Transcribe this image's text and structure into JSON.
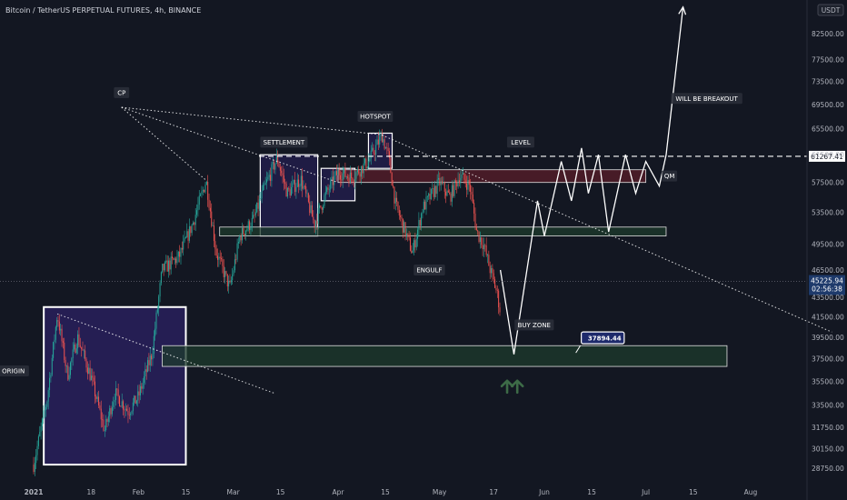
{
  "header": {
    "title": "Bitcoin / TetherUS PERPETUAL FUTURES, 4h, BINANCE",
    "currency": "USDT"
  },
  "colors": {
    "background": "#131722",
    "up": "#26a69a",
    "down": "#ef5350",
    "text": "#b2b5be",
    "box_purple": "#2a2060",
    "zone_green": "#1e3b2c",
    "zone_red": "#5a1e2a",
    "arrow_green": "#3d6b47"
  },
  "chart_data": {
    "type": "candlestick",
    "title": "Bitcoin / TetherUS PERPETUAL FUTURES, 4h, BINANCE",
    "y_axis": {
      "ticks": [
        28750,
        30150,
        31750,
        33500,
        35500,
        37500,
        39500,
        41500,
        43500,
        46500,
        49500,
        53500,
        57500,
        61500,
        65500,
        69500,
        73500,
        77500,
        82500,
        87500
      ],
      "tick_labels": [
        "28750.00",
        "30150.00",
        "31750.00",
        "33500.00",
        "35500.00",
        "37500.00",
        "39500.00",
        "41500.00",
        "43500.00",
        "46500.00",
        "49500.00",
        "53500.00",
        "57500.00",
        "61500.00",
        "65500.00",
        "69500.00",
        "73500.00",
        "77500.00",
        "82500.00",
        "87500.00"
      ],
      "scale": "log",
      "range": [
        27800,
        92000
      ]
    },
    "x_axis": {
      "labels": [
        "2021",
        "18",
        "Feb",
        "15",
        "Mar",
        "15",
        "Apr",
        "15",
        "May",
        "17",
        "Jun",
        "15",
        "Jul",
        "15",
        "Aug"
      ],
      "dates": [
        "2021-01-01",
        "2021-01-18",
        "2021-02-01",
        "2021-02-15",
        "2021-03-01",
        "2021-03-15",
        "2021-04-01",
        "2021-04-15",
        "2021-05-01",
        "2021-05-17",
        "2021-06-01",
        "2021-06-15",
        "2021-07-01",
        "2021-07-15",
        "2021-08-01"
      ]
    },
    "price_markers": [
      {
        "label": "61267.41",
        "value": 61267.41,
        "style": "dashed-white"
      },
      {
        "label": "45225.94",
        "sub": "02:56:38",
        "value": 45225.94,
        "style": "current"
      }
    ],
    "path_keypoints": [
      [
        "2021-01-01",
        29000
      ],
      [
        "2021-01-05",
        34000
      ],
      [
        "2021-01-08",
        41800
      ],
      [
        "2021-01-11",
        36000
      ],
      [
        "2021-01-14",
        39500
      ],
      [
        "2021-01-18",
        35800
      ],
      [
        "2021-01-22",
        31500
      ],
      [
        "2021-01-25",
        34500
      ],
      [
        "2021-01-29",
        33000
      ],
      [
        "2021-02-01",
        34200
      ],
      [
        "2021-02-05",
        38000
      ],
      [
        "2021-02-08",
        46500
      ],
      [
        "2021-02-13",
        48000
      ],
      [
        "2021-02-17",
        52000
      ],
      [
        "2021-02-21",
        57800
      ],
      [
        "2021-02-24",
        48500
      ],
      [
        "2021-02-28",
        44500
      ],
      [
        "2021-03-03",
        50500
      ],
      [
        "2021-03-07",
        52500
      ],
      [
        "2021-03-10",
        56500
      ],
      [
        "2021-03-14",
        61000
      ],
      [
        "2021-03-17",
        56000
      ],
      [
        "2021-03-21",
        58000
      ],
      [
        "2021-03-25",
        52000
      ],
      [
        "2021-03-28",
        55500
      ],
      [
        "2021-04-01",
        59000
      ],
      [
        "2021-04-05",
        58200
      ],
      [
        "2021-04-10",
        60500
      ],
      [
        "2021-04-14",
        64500
      ],
      [
        "2021-04-16",
        61000
      ],
      [
        "2021-04-18",
        54500
      ],
      [
        "2021-04-23",
        48500
      ],
      [
        "2021-04-26",
        54000
      ],
      [
        "2021-05-01",
        57500
      ],
      [
        "2021-05-04",
        55500
      ],
      [
        "2021-05-07",
        58500
      ],
      [
        "2021-05-10",
        57000
      ],
      [
        "2021-05-12",
        51000
      ],
      [
        "2021-05-14",
        49500
      ],
      [
        "2021-05-16",
        46500
      ],
      [
        "2021-05-18",
        44000
      ],
      [
        "2021-05-19",
        42000
      ]
    ],
    "projection": [
      [
        "2021-05-19",
        46500
      ],
      [
        "2021-05-23",
        37894
      ],
      [
        "2021-05-30",
        55000
      ],
      [
        "2021-06-01",
        50500
      ],
      [
        "2021-06-06",
        60500
      ],
      [
        "2021-06-09",
        55000
      ],
      [
        "2021-06-12",
        62500
      ],
      [
        "2021-06-14",
        56000
      ],
      [
        "2021-06-17",
        61500
      ],
      [
        "2021-06-20",
        51000
      ],
      [
        "2021-06-25",
        61500
      ],
      [
        "2021-06-28",
        56000
      ],
      [
        "2021-07-01",
        60500
      ],
      [
        "2021-07-05",
        57000
      ],
      [
        "2021-07-07",
        61500
      ],
      [
        "2021-07-12",
        88000
      ]
    ],
    "zones": [
      {
        "label": "ORIGIN",
        "x": [
          "2021-01-04",
          "2021-02-15"
        ],
        "y": [
          29000,
          42500
        ],
        "kind": "box-purple"
      },
      {
        "label": "SETTLEMENT",
        "x": [
          "2021-03-09",
          "2021-03-26"
        ],
        "y": [
          50500,
          61500
        ],
        "kind": "box-purple-thin"
      },
      {
        "label": "HOTSPOT",
        "x": [
          "2021-04-10",
          "2021-04-17"
        ],
        "y": [
          59500,
          64800
        ],
        "kind": "box-purple-thin"
      },
      {
        "label": "",
        "x": [
          "2021-03-27",
          "2021-04-06"
        ],
        "y": [
          55000,
          59500
        ],
        "kind": "box-purple-thin"
      },
      {
        "label": "LEVEL",
        "x": [
          "2021-04-01",
          "2021-07-01"
        ],
        "y": [
          57500,
          59300
        ],
        "kind": "zone-red"
      },
      {
        "label": "",
        "x": [
          "2021-02-25",
          "2021-07-07"
        ],
        "y": [
          50500,
          51600
        ],
        "kind": "zone-green"
      },
      {
        "label": "BUY ZONE",
        "x": [
          "2021-02-08",
          "2021-07-25"
        ],
        "y": [
          36800,
          38700
        ],
        "kind": "zone-green"
      }
    ],
    "annotations": [
      {
        "text": "CP",
        "date": "2021-01-27",
        "price": 71500
      },
      {
        "text": "SETTLEMENT",
        "date": "2021-03-16",
        "price": 63400
      },
      {
        "text": "HOTSPOT",
        "date": "2021-04-12",
        "price": 67500
      },
      {
        "text": "LEVEL",
        "date": "2021-05-25",
        "price": 63400
      },
      {
        "text": "WILL BE BREAKOUT",
        "date": "2021-07-19",
        "price": 70500
      },
      {
        "text": "QM",
        "date": "2021-07-08",
        "price": 58400
      },
      {
        "text": "ENGULF",
        "date": "2021-04-28",
        "price": 46500
      },
      {
        "text": "BUY ZONE",
        "date": "2021-05-29",
        "price": 40700
      },
      {
        "text": "ORIGIN",
        "date": "2020-12-26",
        "price": 36400
      },
      {
        "text": "37894.44",
        "date": "2021-06-13",
        "price": 39400,
        "callout": true
      }
    ],
    "trendlines": [
      {
        "from": [
          "2021-01-27",
          69000
        ],
        "to": [
          "2021-02-21",
          57800
        ],
        "style": "dotted"
      },
      {
        "from": [
          "2021-01-27",
          69000
        ],
        "to": [
          "2021-04-15",
          64500
        ],
        "style": "dotted"
      },
      {
        "from": [
          "2021-01-27",
          69000
        ],
        "to": [
          "2021-04-01",
          57500
        ],
        "style": "dotted"
      },
      {
        "from": [
          "2021-04-14",
          64500
        ],
        "to": [
          "2021-08-25",
          40000
        ],
        "style": "dotted"
      },
      {
        "from": [
          "2021-01-08",
          41800
        ],
        "to": [
          "2021-03-13",
          34500
        ],
        "style": "dotted"
      }
    ],
    "arrows": [
      {
        "date": "2021-05-21",
        "price": 35000
      },
      {
        "date": "2021-05-24",
        "price": 35000
      }
    ]
  }
}
